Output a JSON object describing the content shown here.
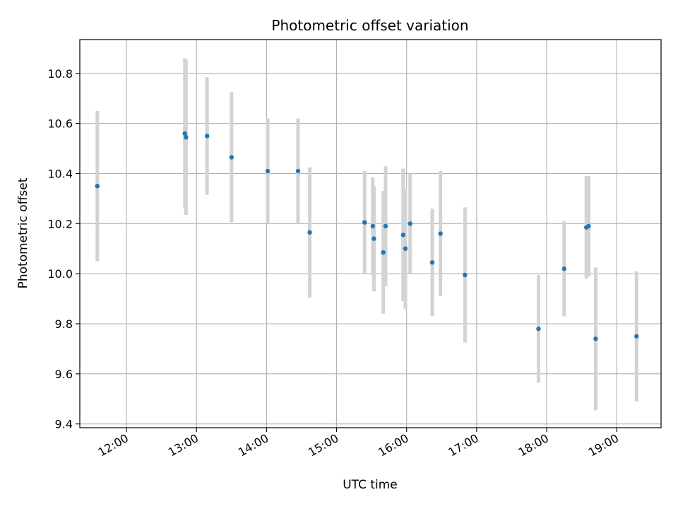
{
  "chart_data": {
    "type": "scatter",
    "title": "Photometric offset variation",
    "xlabel": "UTC time",
    "ylabel": "Photometric offset",
    "x_axis": "time",
    "xlim": [
      "11:20",
      "19:38"
    ],
    "ylim": [
      9.385,
      10.935
    ],
    "x_ticks": [
      "12:00",
      "13:00",
      "14:00",
      "15:00",
      "16:00",
      "17:00",
      "18:00",
      "19:00"
    ],
    "y_ticks": [
      "9.4",
      "9.6",
      "9.8",
      "10.0",
      "10.2",
      "10.4",
      "10.6",
      "10.8"
    ],
    "grid": true,
    "colors": {
      "point": "#1f77b4",
      "errorbar": "#d3d3d3",
      "grid": "#b0b0b0"
    },
    "points": [
      {
        "x": "11:35",
        "y": 10.35,
        "err": 0.3
      },
      {
        "x": "12:50",
        "y": 10.56,
        "err": 0.3
      },
      {
        "x": "12:51",
        "y": 10.545,
        "err": 0.31
      },
      {
        "x": "13:09",
        "y": 10.55,
        "err": 0.235
      },
      {
        "x": "13:30",
        "y": 10.465,
        "err": 0.26
      },
      {
        "x": "14:01",
        "y": 10.41,
        "err": 0.21
      },
      {
        "x": "14:27",
        "y": 10.41,
        "err": 0.21
      },
      {
        "x": "14:37",
        "y": 10.165,
        "err": 0.26
      },
      {
        "x": "15:24",
        "y": 10.205,
        "err": 0.205
      },
      {
        "x": "15:31",
        "y": 10.19,
        "err": 0.195
      },
      {
        "x": "15:32",
        "y": 10.14,
        "err": 0.21
      },
      {
        "x": "15:40",
        "y": 10.085,
        "err": 0.245
      },
      {
        "x": "15:42",
        "y": 10.19,
        "err": 0.24
      },
      {
        "x": "15:57",
        "y": 10.155,
        "err": 0.265
      },
      {
        "x": "15:59",
        "y": 10.1,
        "err": 0.24
      },
      {
        "x": "16:03",
        "y": 10.2,
        "err": 0.2
      },
      {
        "x": "16:22",
        "y": 10.045,
        "err": 0.215
      },
      {
        "x": "16:29",
        "y": 10.16,
        "err": 0.25
      },
      {
        "x": "16:50",
        "y": 9.995,
        "err": 0.27
      },
      {
        "x": "17:53",
        "y": 9.78,
        "err": 0.215
      },
      {
        "x": "18:15",
        "y": 10.02,
        "err": 0.19
      },
      {
        "x": "18:34",
        "y": 10.185,
        "err": 0.205
      },
      {
        "x": "18:36",
        "y": 10.19,
        "err": 0.2
      },
      {
        "x": "18:42",
        "y": 9.74,
        "err": 0.285
      },
      {
        "x": "19:17",
        "y": 9.75,
        "err": 0.26
      }
    ]
  }
}
